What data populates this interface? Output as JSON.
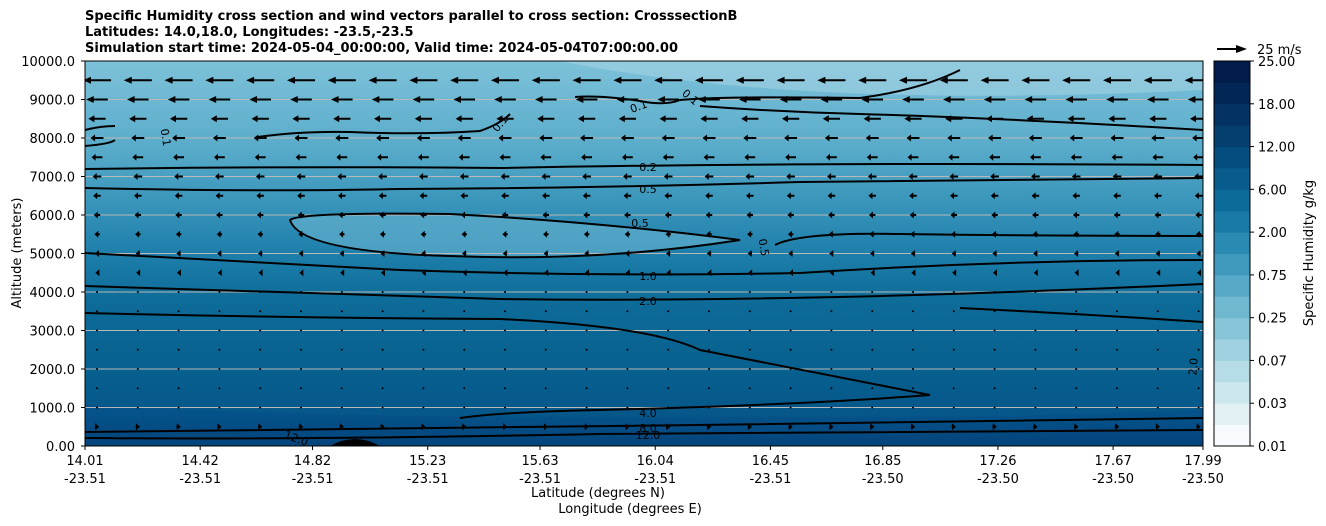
{
  "title_lines": [
    "Specific Humidity cross section and wind vectors parallel to cross section: CrosssectionB",
    "Latitudes: 14.0,18.0, Longitudes: -23.5,-23.5",
    "Simulation start time: 2024-05-04_00:00:00, Valid time: 2024-05-04T07:00:00.00"
  ],
  "chart_data": {
    "type": "heatmap",
    "ylabel": "Altitude (meters)",
    "xlabel_lat": "Latitude (degrees N)",
    "xlabel_lon": "Longitude (degrees E)",
    "ylim": [
      0,
      10000
    ],
    "y_ticks": [
      "0.00",
      "1000.0",
      "2000.0",
      "3000.0",
      "4000.0",
      "5000.0",
      "6000.0",
      "7000.0",
      "8000.0",
      "9000.0",
      "10000.0"
    ],
    "y_tick_values": [
      0,
      1000,
      2000,
      3000,
      4000,
      5000,
      6000,
      7000,
      8000,
      9000,
      10000
    ],
    "x_ticks_lat": [
      "14.01",
      "14.42",
      "14.82",
      "15.23",
      "15.63",
      "16.04",
      "16.45",
      "16.85",
      "17.26",
      "17.67",
      "17.99"
    ],
    "x_ticks_lon": [
      "-23.51",
      "-23.51",
      "-23.51",
      "-23.51",
      "-23.51",
      "-23.51",
      "-23.51",
      "-23.50",
      "-23.50",
      "-23.50",
      "-23.50"
    ],
    "x_tick_values": [
      14.01,
      14.42,
      14.82,
      15.23,
      15.63,
      16.04,
      16.45,
      16.85,
      17.26,
      17.67,
      17.99
    ],
    "xlim": [
      14.01,
      17.99
    ],
    "grid": "horizontal",
    "colorbar": {
      "label": "Specific Humidity g/kg",
      "ticks": [
        "0.01",
        "0.03",
        "0.07",
        "0.25",
        "0.75",
        "2.00",
        "6.00",
        "12.00",
        "18.00",
        "25.00"
      ],
      "colors": [
        "#f7fbfd",
        "#e3f1f5",
        "#cde7ee",
        "#b6dce7",
        "#a0d1e0",
        "#89c5d8",
        "#70b8d0",
        "#57a9c7",
        "#3f99bd",
        "#2a8ab2",
        "#197aa6",
        "#0c6b99",
        "#075c8c",
        "#054d7e",
        "#053f70",
        "#033263",
        "#022757",
        "#021d4c"
      ]
    },
    "quiver_key": "25 m/s",
    "contour_levels": [
      "0.1",
      "0.1",
      "0.1",
      "0.1",
      "0.2",
      "0.5",
      "0.5",
      "0.5",
      "1.0",
      "2.0",
      "2.0",
      "4.0",
      "8.0",
      "12.0",
      "12.0"
    ],
    "wind_rows": [
      {
        "alt": 9500,
        "u": -13
      },
      {
        "alt": 9000,
        "u": -10
      },
      {
        "alt": 8500,
        "u": -8
      },
      {
        "alt": 8000,
        "u": -6
      },
      {
        "alt": 7500,
        "u": -5
      },
      {
        "alt": 7000,
        "u": -4
      },
      {
        "alt": 6500,
        "u": -3.5
      },
      {
        "alt": 6000,
        "u": -3
      },
      {
        "alt": 5500,
        "u": -2.5
      },
      {
        "alt": 5000,
        "u": -2
      },
      {
        "alt": 4500,
        "u": -1.5
      },
      {
        "alt": 4000,
        "u": -1
      },
      {
        "alt": 3500,
        "u": -0.8
      },
      {
        "alt": 3000,
        "u": -0.5
      },
      {
        "alt": 2500,
        "u": -0.5
      },
      {
        "alt": 2000,
        "u": -0.4
      },
      {
        "alt": 1500,
        "u": 0.5
      },
      {
        "alt": 1000,
        "u": 1
      },
      {
        "alt": 500,
        "u": 2
      }
    ]
  }
}
